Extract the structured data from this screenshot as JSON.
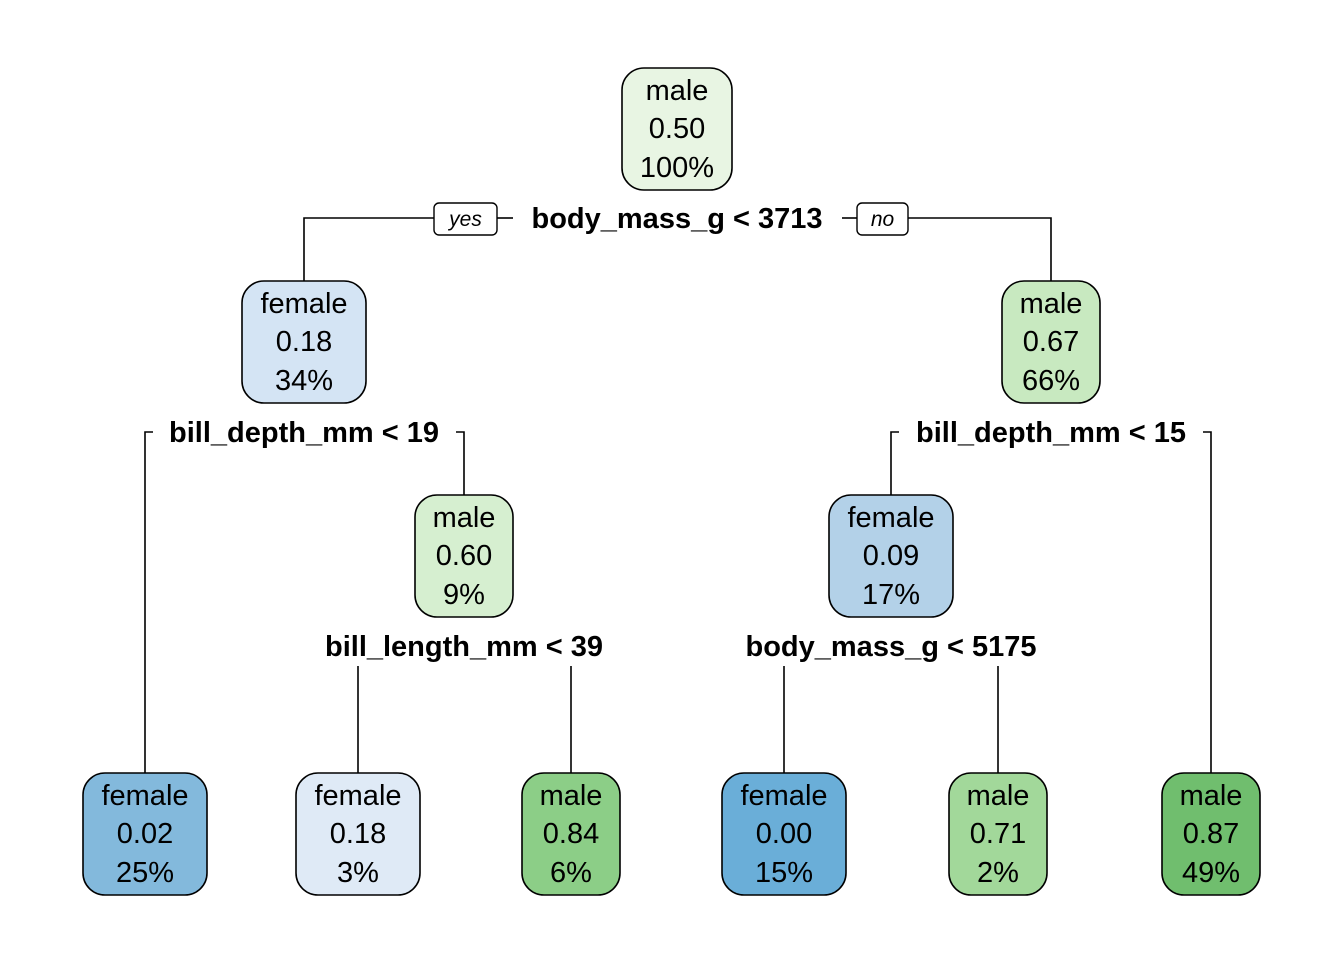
{
  "nodes": [
    {
      "id": "n1",
      "class": "male",
      "prob": "0.50",
      "pct": "100%",
      "fill": "#e8f5e3"
    },
    {
      "id": "n2",
      "class": "female",
      "prob": "0.18",
      "pct": "34%",
      "fill": "#d4e4f4"
    },
    {
      "id": "n3",
      "class": "male",
      "prob": "0.67",
      "pct": "66%",
      "fill": "#c8e9c0"
    },
    {
      "id": "n5",
      "class": "male",
      "prob": "0.60",
      "pct": "9%",
      "fill": "#d6efd0"
    },
    {
      "id": "n6",
      "class": "female",
      "prob": "0.09",
      "pct": "17%",
      "fill": "#b3d1e8"
    },
    {
      "id": "n4",
      "class": "female",
      "prob": "0.02",
      "pct": "25%",
      "fill": "#83b9dc"
    },
    {
      "id": "n10",
      "class": "female",
      "prob": "0.18",
      "pct": "3%",
      "fill": "#dfeaf6"
    },
    {
      "id": "n11",
      "class": "male",
      "prob": "0.84",
      "pct": "6%",
      "fill": "#8cce87"
    },
    {
      "id": "n12",
      "class": "female",
      "prob": "0.00",
      "pct": "15%",
      "fill": "#6aaed8"
    },
    {
      "id": "n13",
      "class": "male",
      "prob": "0.71",
      "pct": "2%",
      "fill": "#a2d89a"
    },
    {
      "id": "n7",
      "class": "male",
      "prob": "0.87",
      "pct": "49%",
      "fill": "#70be6e"
    }
  ],
  "splits": [
    {
      "id": "s1",
      "label": "body_mass_g < 3713"
    },
    {
      "id": "s2",
      "label": "bill_depth_mm < 19"
    },
    {
      "id": "s3",
      "label": "bill_depth_mm < 15"
    },
    {
      "id": "s5",
      "label": "bill_length_mm < 39"
    },
    {
      "id": "s6",
      "label": "body_mass_g < 5175"
    }
  ],
  "branch_labels": {
    "yes": "yes",
    "no": "no"
  }
}
